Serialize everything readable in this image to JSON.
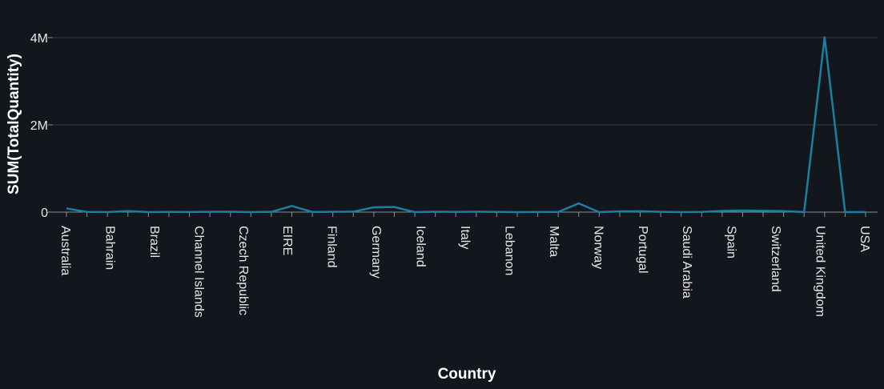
{
  "chart_data": {
    "type": "line",
    "xlabel": "Country",
    "ylabel": "SUM(TotalQuantity)",
    "y_ticks": [
      0,
      2000000,
      4000000
    ],
    "y_tick_labels": [
      "0",
      "2M",
      "4M"
    ],
    "ylim": [
      0,
      4300000
    ],
    "grid": true,
    "line_color": "#1a7fa3",
    "x_labels_shown": [
      "Australia",
      "Bahrain",
      "Brazil",
      "Channel Islands",
      "Czech Republic",
      "EIRE",
      "Finland",
      "Germany",
      "Iceland",
      "Italy",
      "Lebanon",
      "Malta",
      "Norway",
      "Portugal",
      "Saudi Arabia",
      "Spain",
      "Switzerland",
      "United Kingdom",
      "USA"
    ],
    "series": [
      {
        "values": [
          83653,
          4827,
          11,
          23237,
          356,
          5627,
          1363,
          7485,
          9120,
          10,
          5920,
          140525,
          2141,
          6000,
          10698,
          109848,
          117448,
          16,
          8601,
          3480,
          7999,
          4227,
          386,
          2505,
          4000,
          200128,
          16,
          16180,
          20000,
          7000,
          80,
          4000,
          26817,
          35632,
          30000,
          24000,
          1000,
          4008533,
          1034,
          1200
        ]
      }
    ]
  }
}
